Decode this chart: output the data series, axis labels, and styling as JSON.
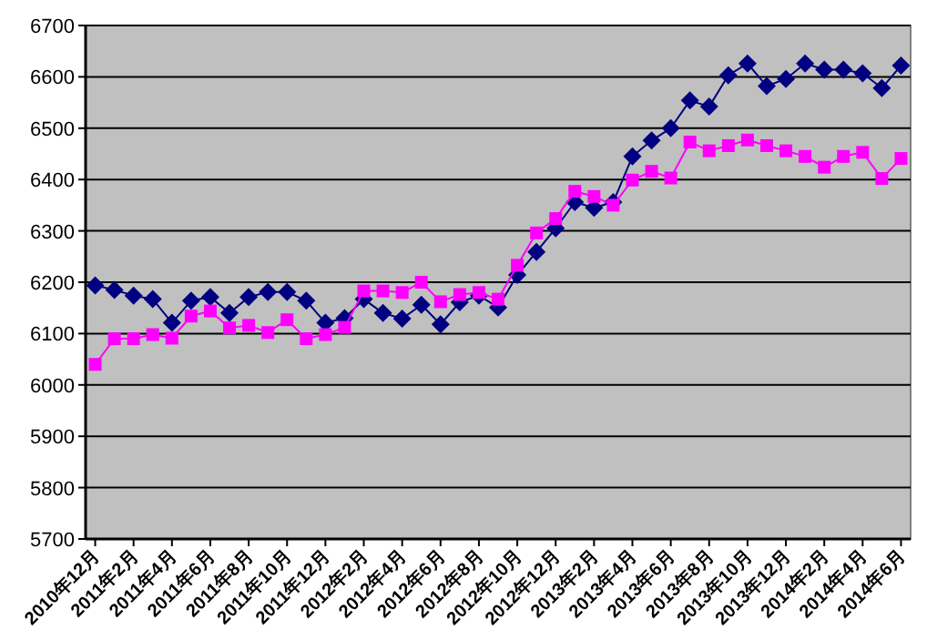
{
  "chart_data": {
    "type": "line",
    "categories": [
      "2010年12月",
      null,
      "2011年2月",
      null,
      "2011年4月",
      null,
      "2011年6月",
      null,
      "2011年8月",
      null,
      "2011年10月",
      null,
      "2011年12月",
      null,
      "2012年2月",
      null,
      "2012年4月",
      null,
      "2012年6月",
      null,
      "2012年8月",
      null,
      "2012年10月",
      null,
      "2012年12月",
      null,
      "2013年2月",
      null,
      "2013年4月",
      null,
      "2013年6月",
      null,
      "2013年8月",
      null,
      "2013年10月",
      null,
      "2013年12月",
      null,
      "2014年2月",
      null,
      "2014年4月",
      null,
      "2014年6月"
    ],
    "series": [
      {
        "color": "#000080",
        "marker": "diamond",
        "values": [
          6194,
          6185,
          6174,
          6167,
          6121,
          6164,
          6171,
          6140,
          6171,
          6181,
          6181,
          6164,
          6121,
          6130,
          6167,
          6140,
          6129,
          6156,
          6118,
          6161,
          6174,
          6151,
          6214,
          6259,
          6305,
          6356,
          6345,
          6356,
          6445,
          6476,
          6500,
          6554,
          6542,
          6603,
          6626,
          6582,
          6596,
          6626,
          6614,
          6614,
          6607,
          6578,
          6622
        ]
      },
      {
        "color": "#ff00ff",
        "marker": "square",
        "values": [
          6040,
          6090,
          6090,
          6098,
          6091,
          6134,
          6144,
          6111,
          6116,
          6102,
          6127,
          6090,
          6098,
          6112,
          6183,
          6183,
          6180,
          6200,
          6162,
          6176,
          6180,
          6167,
          6233,
          6296,
          6324,
          6377,
          6367,
          6350,
          6399,
          6416,
          6403,
          6473,
          6456,
          6466,
          6477,
          6466,
          6456,
          6445,
          6424,
          6445,
          6453,
          6402,
          6441
        ]
      }
    ],
    "ylim": [
      5700,
      6700
    ],
    "yticks": [
      5700,
      5800,
      5900,
      6000,
      6100,
      6200,
      6300,
      6400,
      6500,
      6600,
      6700
    ],
    "grid": "y",
    "line_style": "solid"
  }
}
